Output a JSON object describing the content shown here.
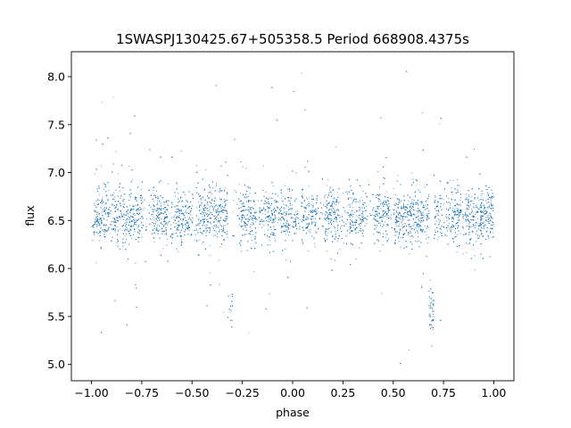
{
  "chart_data": {
    "type": "scatter",
    "title": "1SWASPJ130425.67+505358.5 Period 668908.4375s",
    "xlabel": "phase",
    "ylabel": "flux",
    "xlim": [
      -1.1,
      1.1
    ],
    "ylim": [
      4.83,
      8.26
    ],
    "x_ticks": [
      -1.0,
      -0.75,
      -0.5,
      -0.25,
      0.0,
      0.25,
      0.5,
      0.75,
      1.0
    ],
    "x_tick_labels": [
      "−1.00",
      "−0.75",
      "−0.50",
      "−0.25",
      "0.00",
      "0.25",
      "0.50",
      "0.75",
      "1.00"
    ],
    "y_ticks": [
      5.0,
      5.5,
      6.0,
      6.5,
      7.0,
      7.5,
      8.0
    ],
    "y_tick_labels": [
      "5.0",
      "5.5",
      "6.0",
      "6.5",
      "7.0",
      "7.5",
      "8.0"
    ],
    "point_color": "#1f77b4",
    "grid": false,
    "legend": "none",
    "series": [
      {
        "baseline_flux": 6.55,
        "baseline_spread": 0.14,
        "eclipse_centers": [
          -0.31,
          0.69
        ],
        "eclipse_flux": 5.55,
        "eclipse_halfwidth": 0.012,
        "phase_range": [
          -1.0,
          1.0
        ],
        "outlier_flux_range": [
          4.98,
          8.1
        ]
      }
    ]
  }
}
